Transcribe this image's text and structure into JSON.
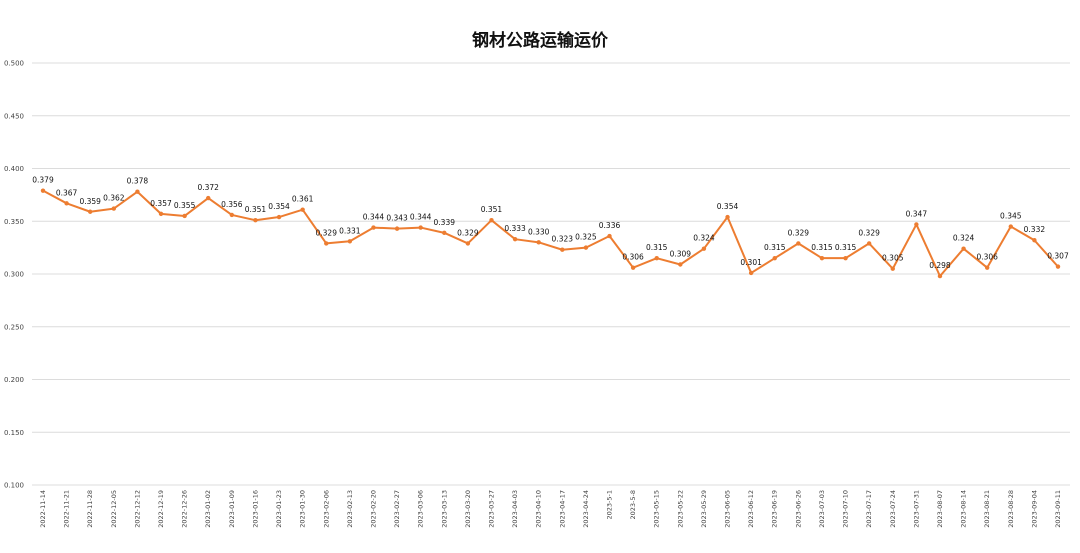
{
  "chart_data": {
    "type": "line",
    "title": "钢材公路运输运价",
    "xlabel": "",
    "ylabel": "",
    "ylim": [
      0.1,
      0.5
    ],
    "yticks": [
      "0.100",
      "0.150",
      "0.200",
      "0.250",
      "0.300",
      "0.350",
      "0.400",
      "0.450",
      "0.500"
    ],
    "grid": true,
    "legend": "none",
    "series_color": "#ED7D31",
    "categories": [
      "2022-11-14",
      "2022-11-21",
      "2022-11-28",
      "2022-12-05",
      "2022-12-12",
      "2022-12-19",
      "2022-12-26",
      "2023-01-02",
      "2023-01-09",
      "2023-01-16",
      "2023-01-23",
      "2023-01-30",
      "2023-02-06",
      "2023-02-13",
      "2023-02-20",
      "2023-02-27",
      "2023-03-06",
      "2023-03-13",
      "2023-03-20",
      "2023-03-27",
      "2023-04-03",
      "2023-04-10",
      "2023-04-17",
      "2023-04-24",
      "2023-5-1",
      "2023-5-8",
      "2023-05-15",
      "2023-05-22",
      "2023-05-29",
      "2023-06-05",
      "2023-06-12",
      "2023-06-19",
      "2023-06-26",
      "2023-07-03",
      "2023-07-10",
      "2023-07-17",
      "2023-07-24",
      "2023-07-31",
      "2023-08-07",
      "2023-08-14",
      "2023-08-21",
      "2023-08-28",
      "2023-09-04",
      "2023-09-11"
    ],
    "values": [
      0.379,
      0.367,
      0.359,
      0.362,
      0.378,
      0.357,
      0.355,
      0.372,
      0.356,
      0.351,
      0.354,
      0.361,
      0.329,
      0.331,
      0.344,
      0.343,
      0.344,
      0.339,
      0.329,
      0.351,
      0.333,
      0.33,
      0.323,
      0.325,
      0.336,
      0.306,
      0.315,
      0.309,
      0.324,
      0.354,
      0.301,
      0.315,
      0.329,
      0.315,
      0.315,
      0.329,
      0.305,
      0.347,
      0.298,
      0.324,
      0.306,
      0.345,
      0.332,
      0.307
    ],
    "data_labels": [
      "0.379",
      "0.367",
      "0.359",
      "0.362",
      "0.378",
      "0.357",
      "0.355",
      "0.372",
      "0.356",
      "0.351",
      "0.354",
      "0.361",
      "0.329",
      "0.331",
      "0.344",
      "0.343",
      "0.344",
      "0.339",
      "0.329",
      "0.351",
      "0.333",
      "0.330",
      "0.323",
      "0.325",
      "0.336",
      "0.306",
      "0.315",
      "0.309",
      "0.324",
      "0.354",
      "0.301",
      "0.315",
      "0.329",
      "0.315",
      "0.315",
      "0.329",
      "0.305",
      "0.347",
      "0.298",
      "0.324",
      "0.306",
      "0.345",
      "0.332",
      "0.307"
    ]
  }
}
